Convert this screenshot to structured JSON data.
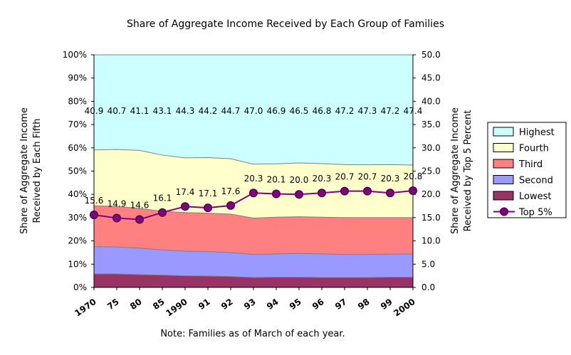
{
  "chart_data": {
    "type": "area",
    "title": "Share of Aggregate Income Received by Each Group of Families",
    "note": "Note: Families as of March of each year.",
    "ylabel_left": [
      "Share of Aggregate Income",
      "Received by Each Fifth"
    ],
    "ylabel_right": [
      "Share of Aggregate Income",
      "Received by Top 5 Percent"
    ],
    "categories": [
      "1970",
      "75",
      "80",
      "85",
      "1990",
      "91",
      "92",
      "93",
      "94",
      "95",
      "96",
      "97",
      "98",
      "99",
      "2000"
    ],
    "ylim_left": [
      0,
      100
    ],
    "ylim_right": [
      0,
      50
    ],
    "left_ticks": [
      "0%",
      "10%",
      "20%",
      "30%",
      "40%",
      "50%",
      "60%",
      "70%",
      "80%",
      "90%",
      "100%"
    ],
    "right_ticks": [
      "0.0",
      "5.0",
      "10.0",
      "15.0",
      "20.0",
      "25.0",
      "30.0",
      "35.0",
      "40.0",
      "45.0",
      "50.0"
    ],
    "stacked_series": [
      {
        "name": "Lowest",
        "color": "#993366",
        "values": [
          5.8,
          5.8,
          5.5,
          5.3,
          5.0,
          4.9,
          4.7,
          4.3,
          4.4,
          4.4,
          4.3,
          4.3,
          4.3,
          4.4,
          4.4
        ]
      },
      {
        "name": "Second",
        "color": "#9999ff",
        "values": [
          11.7,
          11.6,
          11.4,
          10.8,
          10.6,
          10.5,
          10.3,
          9.9,
          10.0,
          10.2,
          10.1,
          9.9,
          9.9,
          9.9,
          10.0
        ]
      },
      {
        "name": "Third",
        "color": "#ff8080",
        "values": [
          17.6,
          17.4,
          17.1,
          16.6,
          16.6,
          16.5,
          16.5,
          15.6,
          15.8,
          15.8,
          15.8,
          15.8,
          15.8,
          15.7,
          15.6
        ]
      },
      {
        "name": "Fourth",
        "color": "#ffffcc",
        "values": [
          24.0,
          24.5,
          24.9,
          24.2,
          23.5,
          23.9,
          23.8,
          23.2,
          22.9,
          23.1,
          23.0,
          22.8,
          22.7,
          22.8,
          22.6
        ]
      },
      {
        "name": "Highest",
        "color": "#ccffff",
        "values": [
          40.9,
          40.7,
          41.1,
          43.1,
          44.3,
          44.2,
          44.7,
          47.0,
          46.9,
          46.5,
          46.8,
          47.2,
          47.3,
          47.2,
          47.4
        ]
      }
    ],
    "highest_labels": [
      "40.9",
      "40.7",
      "41.1",
      "43.1",
      "44.3",
      "44.2",
      "44.7",
      "47.0",
      "46.9",
      "46.5",
      "46.8",
      "47.2",
      "47.3",
      "47.2",
      "47.4"
    ],
    "line_series": {
      "name": "Top 5%",
      "color": "#800080",
      "axis": "right",
      "values": [
        15.6,
        14.9,
        14.6,
        16.1,
        17.4,
        17.1,
        17.6,
        20.3,
        20.1,
        20.0,
        20.3,
        20.7,
        20.7,
        20.3,
        20.8
      ],
      "labels": [
        "15.6",
        "14.9",
        "14.6",
        "16.1",
        "17.4",
        "17.1",
        "17.6",
        "20.3",
        "20.1",
        "20.0",
        "20.3",
        "20.7",
        "20.7",
        "20.3",
        "20.8"
      ]
    },
    "legend": [
      "Highest",
      "Fourth",
      "Third",
      "Second",
      "Lowest",
      "Top 5%"
    ],
    "legend_position": "right",
    "grid": false
  }
}
